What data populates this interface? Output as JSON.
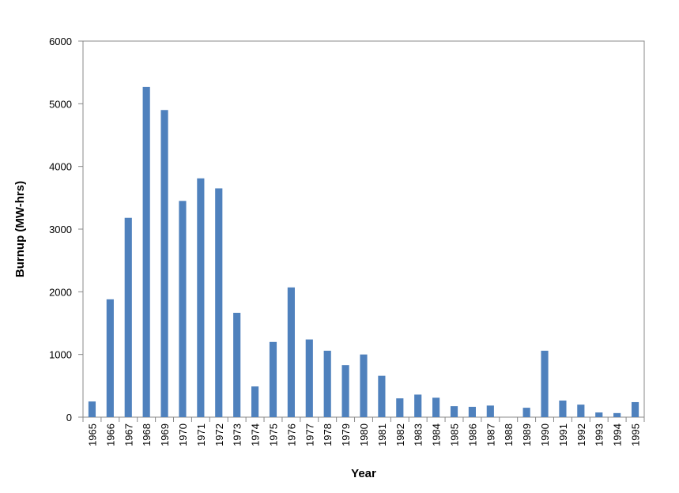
{
  "chart_data": {
    "type": "bar",
    "x_label": "Year",
    "y_label": "Burnup (MW-hrs)",
    "categories": [
      "1965",
      "1966",
      "1967",
      "1968",
      "1969",
      "1970",
      "1971",
      "1972",
      "1973",
      "1974",
      "1975",
      "1976",
      "1977",
      "1978",
      "1979",
      "1980",
      "1981",
      "1982",
      "1983",
      "1984",
      "1985",
      "1986",
      "1987",
      "1988",
      "1989",
      "1990",
      "1991",
      "1992",
      "1993",
      "1994",
      "1995"
    ],
    "values": [
      250,
      1880,
      3180,
      5270,
      4900,
      3450,
      3810,
      3650,
      1665,
      490,
      1200,
      2070,
      1240,
      1060,
      830,
      1000,
      660,
      300,
      360,
      310,
      175,
      165,
      185,
      0,
      150,
      1060,
      265,
      200,
      75,
      65,
      240
    ],
    "color": "#4f81bd",
    "ylim": [
      0,
      6000
    ],
    "yticks": [
      0,
      1000,
      2000,
      3000,
      4000,
      5000,
      6000
    ],
    "grid": false
  }
}
